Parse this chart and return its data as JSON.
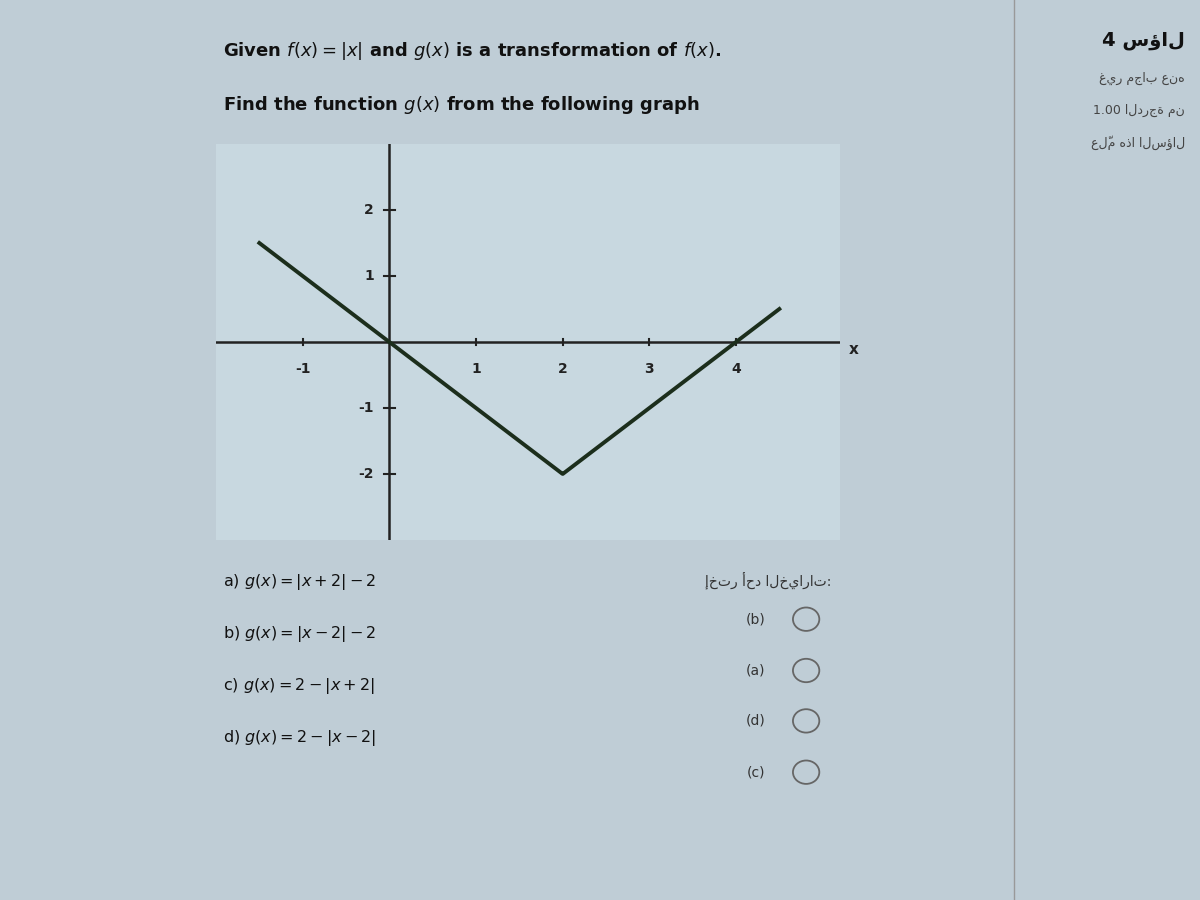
{
  "title_line1": "Given $f(x) = |x|$ and $g(x)$ is a transformation of $f(x)$.",
  "title_line2": "Find the function $g(x)$ from the following graph",
  "bg_color": "#bfcdd6",
  "main_bg": "#bfcdd6",
  "sidebar_bg": "#d8d8d8",
  "graph_bg": "#c8d8e0",
  "line_color": "#1c2e1c",
  "axis_color": "#222222",
  "xlim": [
    -2.0,
    5.2
  ],
  "ylim": [
    -3.0,
    3.0
  ],
  "xticks": [
    -1,
    1,
    2,
    3,
    4
  ],
  "yticks": [
    -2,
    -1,
    1,
    2
  ],
  "xlabel": "x",
  "graph_x_start": -1.5,
  "graph_x_end": 4.5,
  "vertex_x": 2,
  "vertex_y": -2,
  "choices": [
    "a) $g(x) = |x + 2| - 2$",
    "b) $g(x) = |x - 2| - 2$",
    "c) $g(x) = 2 - |x + 2|$",
    "d) $g(x) = 2 - |x - 2|$"
  ],
  "radio_label": "إختر أحد الخيارات:",
  "radio_items": [
    "(b)",
    "(a)",
    "(d)",
    "(c)"
  ],
  "sidebar_line1": "4 سؤال",
  "sidebar_line2": "غير مجاب عنه",
  "sidebar_line3": "1.00 الدرجة من",
  "sidebar_line4": "علّم هذا السؤال"
}
